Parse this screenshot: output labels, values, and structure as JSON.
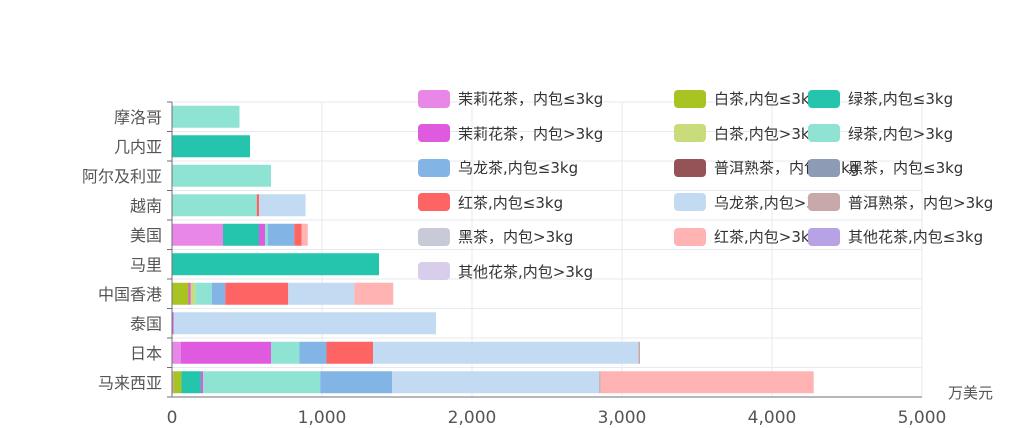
{
  "chart_data": {
    "type": "bar",
    "orientation": "horizontal",
    "stacked": true,
    "unit_label": "万美元",
    "xlim": [
      0,
      5000
    ],
    "x_ticks": [
      "0",
      "1,000",
      "2,000",
      "3,000",
      "4,000",
      "5,000"
    ],
    "x_tick_values": [
      0,
      1000,
      2000,
      3000,
      4000,
      5000
    ],
    "categories": [
      "马来西亚",
      "日本",
      "泰国",
      "中国香港",
      "马里",
      "美国",
      "越南",
      "阿尔及利亚",
      "几内亚",
      "摩洛哥"
    ],
    "grid": true,
    "legend_position": "top-right",
    "series": [
      {
        "name": "茉莉花茶，内包≤3kg",
        "color": "#E887E8",
        "values": [
          8,
          60,
          0,
          0,
          0,
          340,
          0,
          0,
          0,
          0
        ]
      },
      {
        "name": "白茶,内包≤3kg",
        "color": "#A8C423",
        "values": [
          55,
          0,
          0,
          110,
          0,
          0,
          0,
          0,
          0,
          0
        ]
      },
      {
        "name": "绿茶,内包≤3kg",
        "color": "#25C4AC",
        "values": [
          130,
          0,
          0,
          0,
          1380,
          240,
          0,
          0,
          520,
          0
        ]
      },
      {
        "name": "茉莉花茶，内包>3kg",
        "color": "#E05AE0",
        "values": [
          15,
          600,
          10,
          15,
          0,
          40,
          0,
          0,
          0,
          0
        ]
      },
      {
        "name": "白茶,内包>3kg",
        "color": "#C8DC7C",
        "values": [
          0,
          0,
          0,
          30,
          0,
          0,
          0,
          0,
          0,
          0
        ]
      },
      {
        "name": "绿茶,内包>3kg",
        "color": "#8FE3D2",
        "values": [
          780,
          190,
          0,
          110,
          0,
          20,
          565,
          660,
          0,
          450
        ]
      },
      {
        "name": "乌龙茶,内包≤3kg",
        "color": "#82B4E6",
        "values": [
          480,
          180,
          0,
          90,
          0,
          175,
          0,
          0,
          0,
          0
        ]
      },
      {
        "name": "普洱熟茶，内包≤3kg",
        "color": "#955358",
        "values": [
          0,
          0,
          0,
          0,
          0,
          0,
          0,
          0,
          0,
          0
        ]
      },
      {
        "name": "黑茶，内包≤3kg",
        "color": "#8E9BB4",
        "values": [
          0,
          0,
          0,
          0,
          0,
          0,
          0,
          0,
          0,
          0
        ]
      },
      {
        "name": "红茶,内包≤3kg",
        "color": "#FF6464",
        "values": [
          0,
          310,
          0,
          420,
          0,
          50,
          15,
          0,
          0,
          0
        ]
      },
      {
        "name": "乌龙茶,内包>3kg",
        "color": "#C2DBF2",
        "values": [
          1380,
          1770,
          1750,
          440,
          0,
          0,
          310,
          0,
          0,
          0
        ]
      },
      {
        "name": "普洱熟茶，内包>3kg",
        "color": "#C8A8A8",
        "values": [
          10,
          10,
          0,
          0,
          0,
          0,
          0,
          0,
          0,
          0
        ]
      },
      {
        "name": "黑茶，内包>3kg",
        "color": "#C8CAD8",
        "values": [
          0,
          0,
          0,
          0,
          0,
          0,
          0,
          0,
          0,
          0
        ]
      },
      {
        "name": "红茶,内包>3kg",
        "color": "#FFB3B3",
        "values": [
          1420,
          0,
          0,
          260,
          0,
          40,
          0,
          0,
          0,
          0
        ]
      },
      {
        "name": "其他花茶,内包≤3kg",
        "color": "#B8A2E6",
        "values": [
          0,
          0,
          0,
          0,
          0,
          0,
          0,
          0,
          0,
          0
        ]
      },
      {
        "name": "其他花茶,内包>3kg",
        "color": "#D8CDEA",
        "values": [
          0,
          0,
          0,
          0,
          0,
          0,
          0,
          0,
          0,
          0
        ]
      }
    ]
  }
}
